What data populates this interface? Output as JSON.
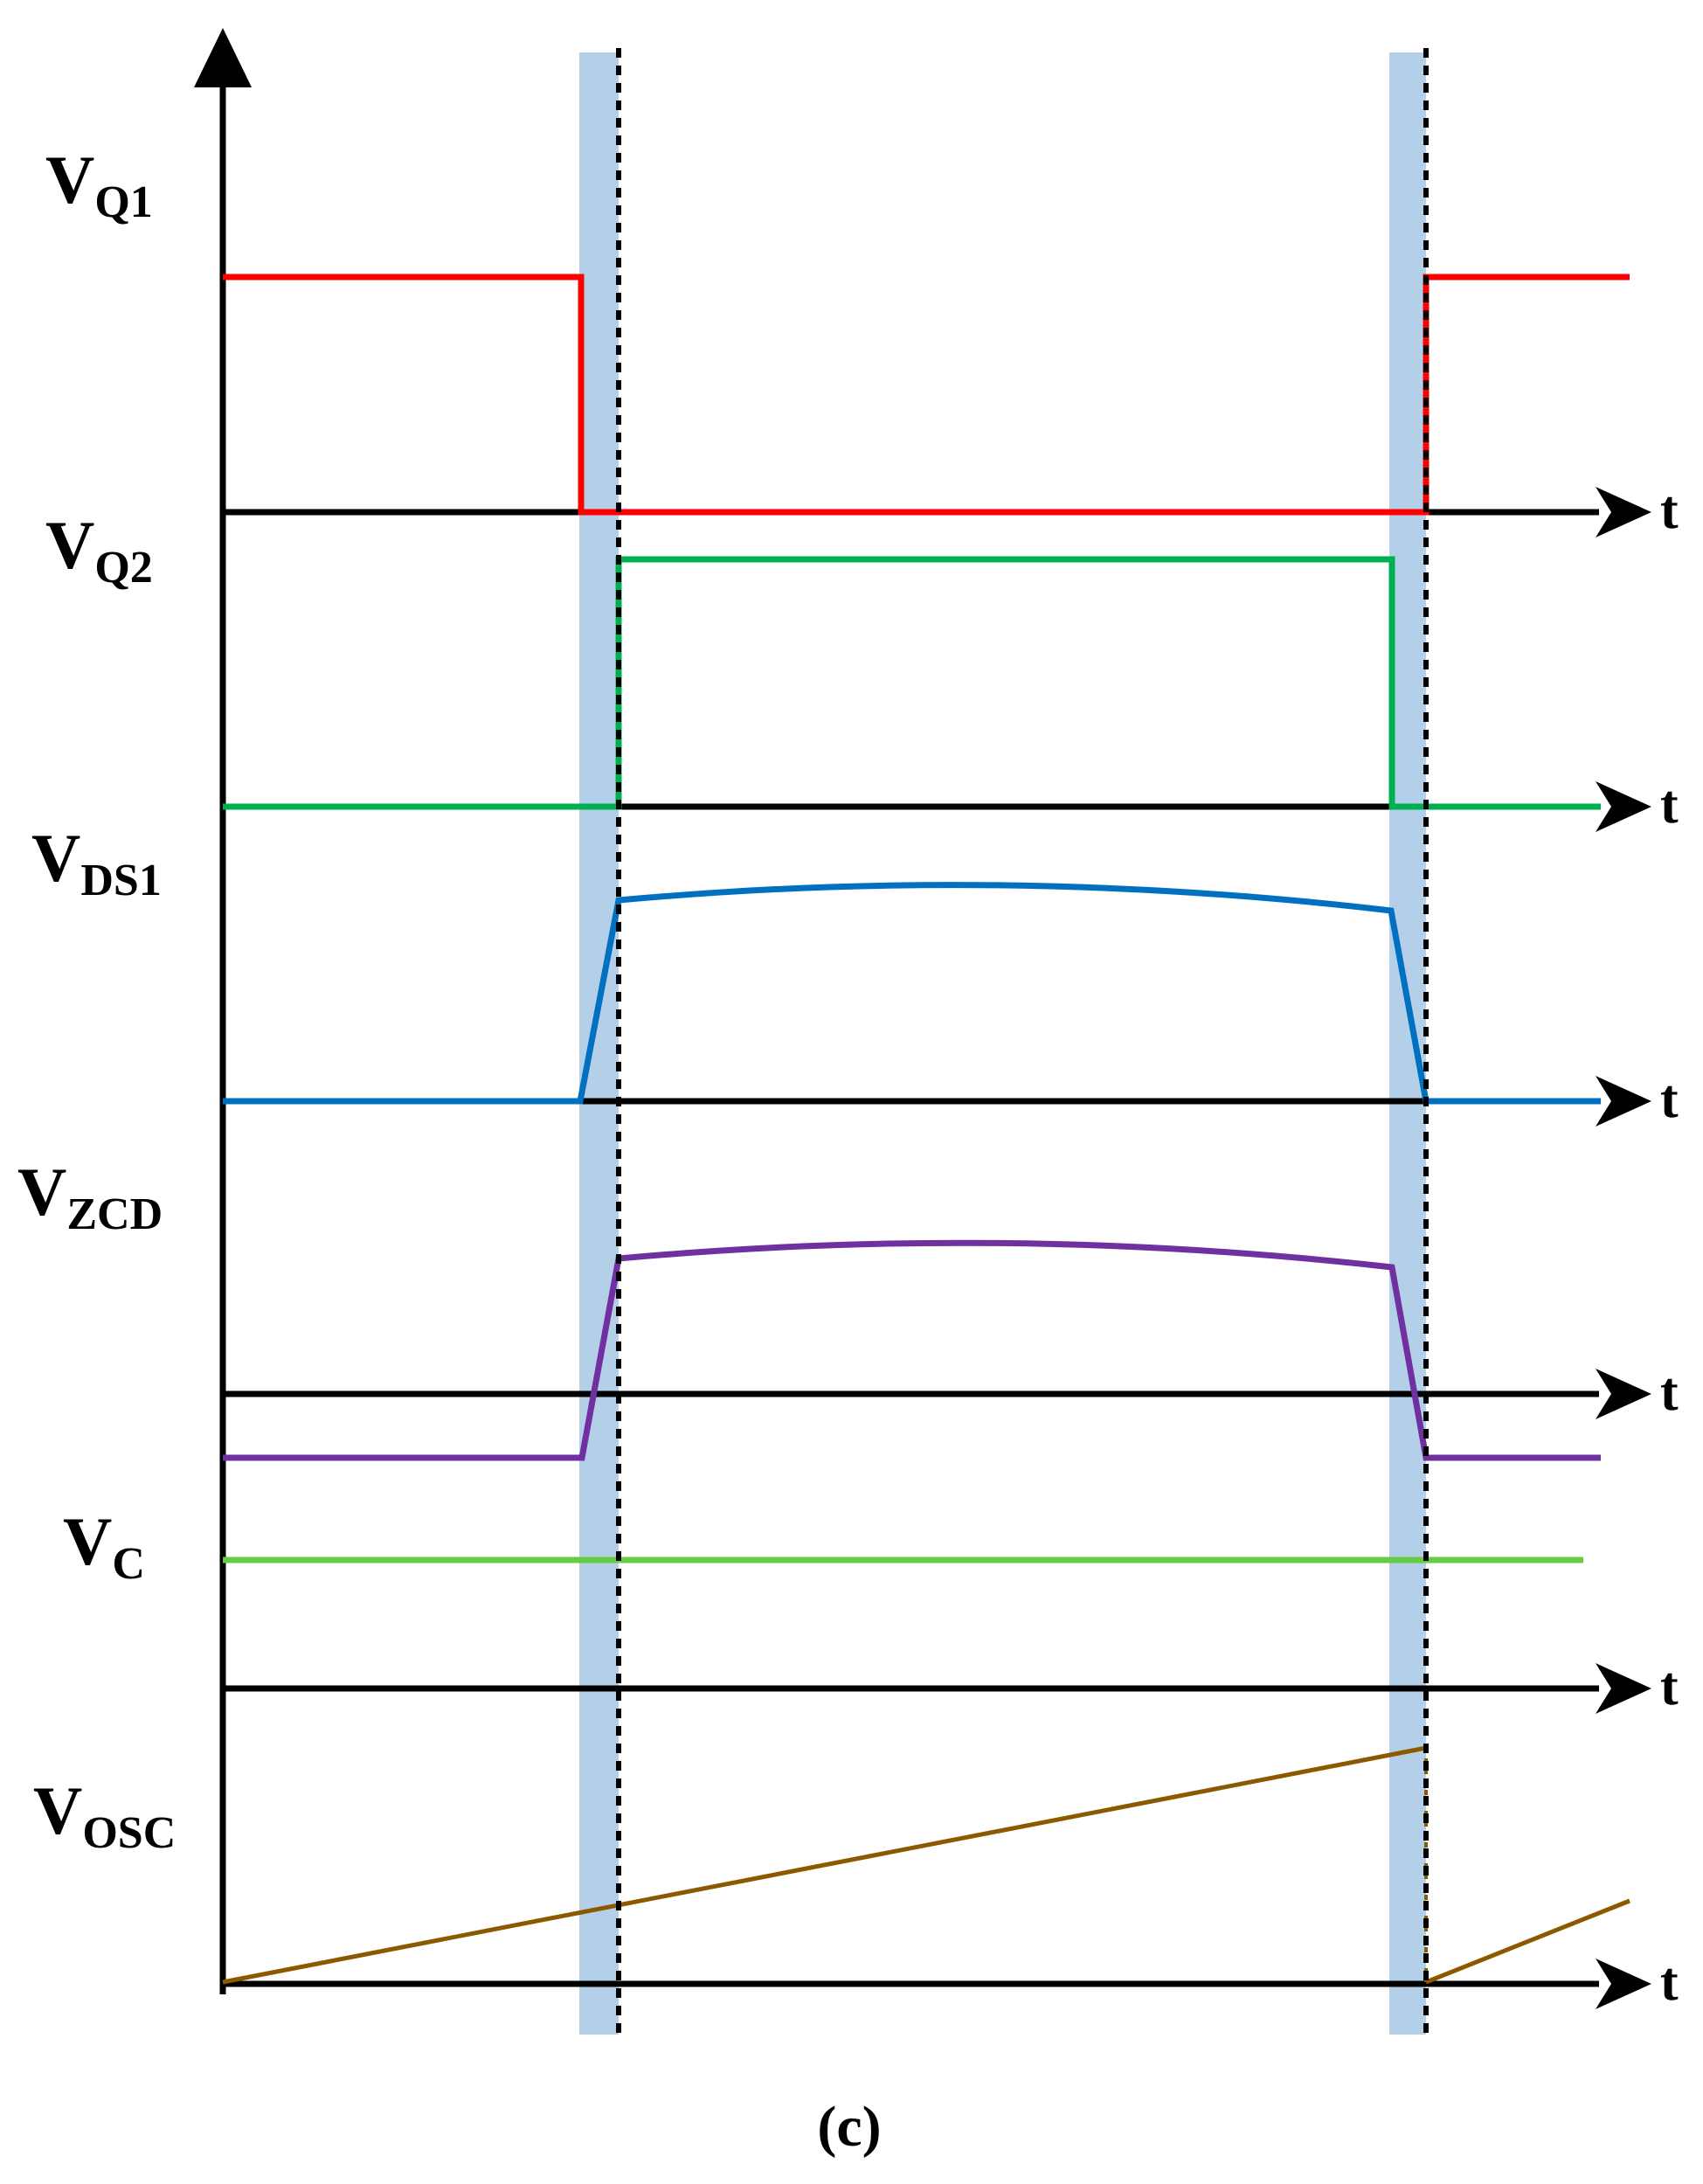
{
  "signals": [
    {
      "id": "vq1",
      "main": "V",
      "sub": "Q1",
      "axis_label": "t",
      "color": "#ff0000"
    },
    {
      "id": "vq2",
      "main": "V",
      "sub": "Q2",
      "axis_label": "t",
      "color": "#00b050"
    },
    {
      "id": "vds1",
      "main": "V",
      "sub": "DS1",
      "axis_label": "t",
      "color": "#0070c0"
    },
    {
      "id": "vzcd",
      "main": "V",
      "sub": "ZCD",
      "axis_label": "t",
      "color": "#7030a0"
    },
    {
      "id": "vc",
      "main": "V",
      "sub": "C",
      "axis_label": "t",
      "color": "#66cc44"
    },
    {
      "id": "vosc",
      "main": "V",
      "sub": "OSC",
      "axis_label": "t",
      "color": "#8b5a00"
    }
  ],
  "caption": "(c)",
  "colors": {
    "axis": "#000000",
    "dead_time_band": "#b4cfe8",
    "marker": "#000000"
  }
}
